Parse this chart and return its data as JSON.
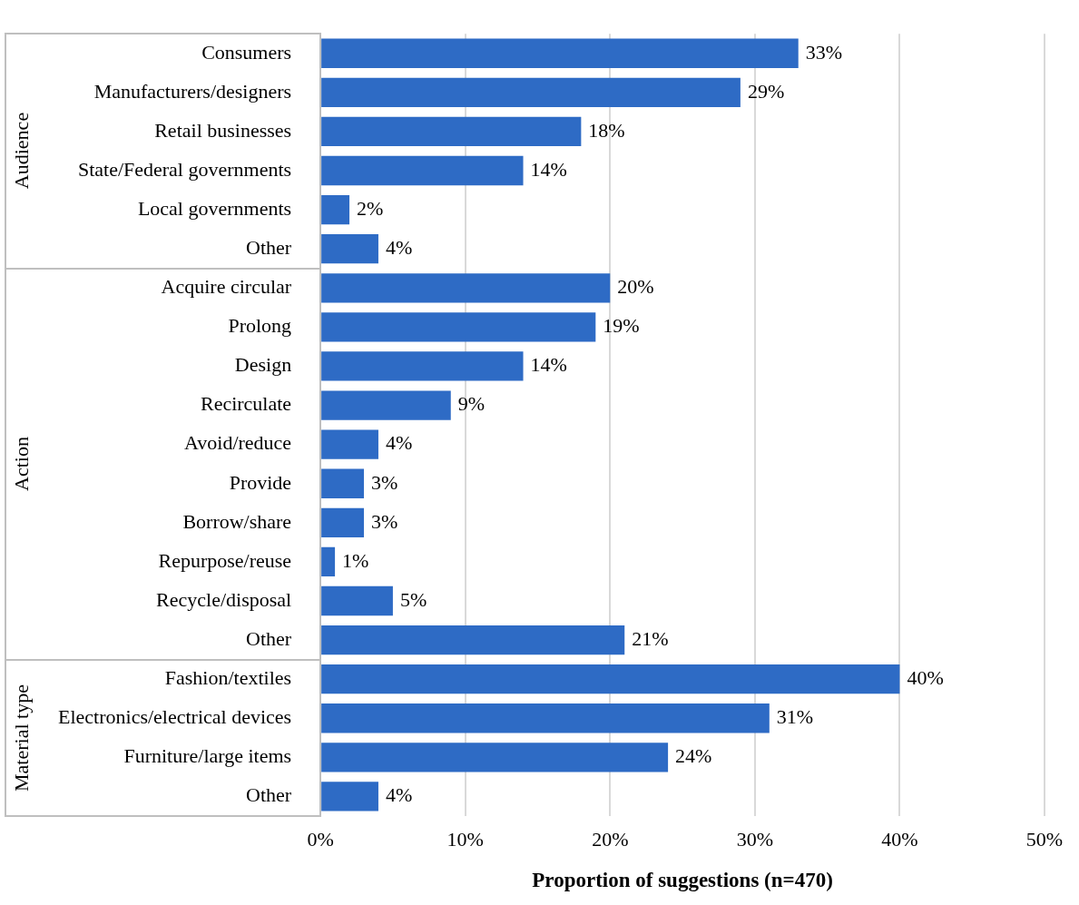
{
  "chart_data": {
    "type": "bar",
    "orientation": "horizontal",
    "categories": [
      "Consumers",
      "Manufacturers/designers",
      "Retail businesses",
      "State/Federal governments",
      "Local governments",
      "Other",
      "Acquire circular",
      "Prolong",
      "Design",
      "Recirculate",
      "Avoid/reduce",
      "Provide",
      "Borrow/share",
      "Repurpose/reuse",
      "Recycle/disposal",
      "Other",
      "Fashion/textiles",
      "Electronics/electrical devices",
      "Furniture/large items",
      "Other"
    ],
    "values": [
      33,
      29,
      18,
      14,
      2,
      4,
      20,
      19,
      14,
      9,
      4,
      3,
      3,
      1,
      5,
      21,
      40,
      31,
      24,
      4
    ],
    "value_labels": [
      "33%",
      "29%",
      "18%",
      "14%",
      "2%",
      "4%",
      "20%",
      "19%",
      "14%",
      "9%",
      "4%",
      "3%",
      "3%",
      "1%",
      "5%",
      "21%",
      "40%",
      "31%",
      "24%",
      "4%"
    ],
    "color": "#2e6bc5",
    "xlim": [
      0,
      50
    ],
    "xticks": [
      {
        "value": 0,
        "label": "0%"
      },
      {
        "value": 10,
        "label": "10%"
      },
      {
        "value": 20,
        "label": "20%"
      },
      {
        "value": 30,
        "label": "30%"
      },
      {
        "value": 40,
        "label": "40%"
      },
      {
        "value": 50,
        "label": "50%"
      }
    ],
    "xlabel": "Proportion of suggestions (n=470)",
    "annotations": [
      "Audience",
      "Action",
      "Material type"
    ],
    "grid": "x",
    "legend": false
  }
}
